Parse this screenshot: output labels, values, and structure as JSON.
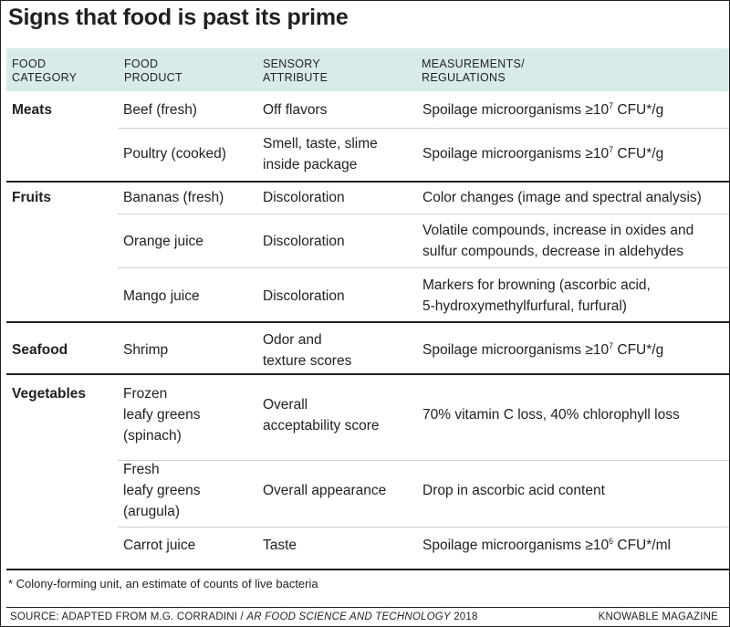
{
  "title": "Signs that food is past its prime",
  "headers": {
    "category": [
      "FOOD",
      "CATEGORY"
    ],
    "product": [
      "FOOD",
      "PRODUCT"
    ],
    "sensory": [
      "SENSORY",
      "ATTRIBUTE"
    ],
    "measure": [
      "MEASUREMENTS/",
      "REGULATIONS"
    ]
  },
  "categories": [
    "Meats",
    "Fruits",
    "Seafood",
    "Vegetables"
  ],
  "rows": [
    {
      "product": [
        "Beef (fresh)"
      ],
      "sensory": [
        "Off flavors"
      ],
      "measure_pre": "Spoilage microorganisms ≥10",
      "measure_sup": "7",
      "measure_post": " CFU*/g"
    },
    {
      "product": [
        "Poultry (cooked)"
      ],
      "sensory": [
        "Smell, taste, slime",
        "inside package"
      ],
      "measure_pre": "Spoilage microorganisms ≥10",
      "measure_sup": "7",
      "measure_post": " CFU*/g"
    },
    {
      "product": [
        "Bananas (fresh)"
      ],
      "sensory": [
        "Discoloration"
      ],
      "measure": [
        "Color changes (image and spectral analysis)"
      ]
    },
    {
      "product": [
        "Orange juice"
      ],
      "sensory": [
        "Discoloration"
      ],
      "measure": [
        "Volatile compounds, increase in oxides and",
        "sulfur compounds, decrease in aldehydes"
      ]
    },
    {
      "product": [
        "Mango juice"
      ],
      "sensory": [
        "Discoloration"
      ],
      "measure": [
        "Markers for browning (ascorbic acid,",
        "5-hydroxymethylfurfural, furfural)"
      ]
    },
    {
      "product": [
        "Shrimp"
      ],
      "sensory": [
        "Odor and",
        "texture scores"
      ],
      "measure_pre": "Spoilage microorganisms ≥10",
      "measure_sup": "7",
      "measure_post": " CFU*/g"
    },
    {
      "product": [
        "Frozen",
        "leafy greens",
        "(spinach)"
      ],
      "sensory": [
        "Overall",
        "acceptability score"
      ],
      "measure": [
        "70% vitamin C loss, 40% chlorophyll loss"
      ]
    },
    {
      "product": [
        "Fresh",
        "leafy greens",
        "(arugula)"
      ],
      "sensory": [
        "Overall appearance"
      ],
      "measure": [
        "Drop in ascorbic acid content"
      ]
    },
    {
      "product": [
        "Carrot juice"
      ],
      "sensory": [
        "Taste"
      ],
      "measure_pre": "Spoilage microorganisms ≥10",
      "measure_sup": "6",
      "measure_post": " CFU*/ml"
    }
  ],
  "footnote": "* Colony-forming unit, an estimate of counts of live bacteria",
  "source_prefix": "SOURCE: ADAPTED FROM M.G. CORRADINI / ",
  "source_journal": "AR FOOD SCIENCE AND TECHNOLOGY",
  "source_year": " 2018",
  "brand": "KNOWABLE MAGAZINE"
}
